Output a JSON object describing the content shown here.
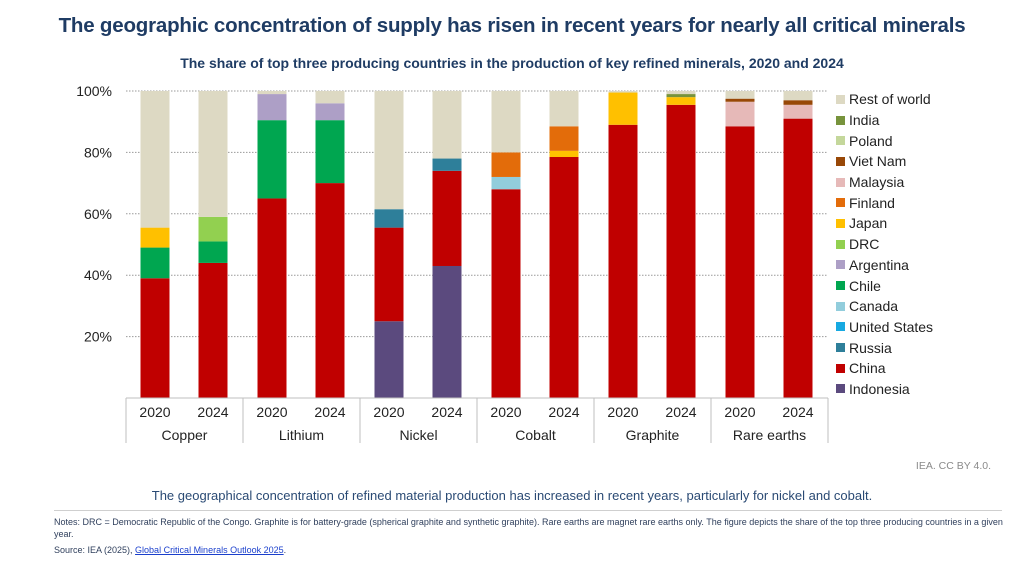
{
  "title": "The geographic concentration of supply has risen in recent years for nearly all critical minerals",
  "subtitle": "The share of top three producing countries in the production of key refined minerals, 2020 and 2024",
  "credit": "IEA. CC BY 4.0.",
  "caption": "The geographical concentration of refined material production has increased in recent years, particularly for nickel and cobalt.",
  "notes": "Notes: DRC = Democratic Republic of the Congo. Graphite is for battery-grade (spherical graphite and synthetic graphite). Rare earths are magnet rare earths only. The figure depicts the share of the top three producing countries in a given year.",
  "source_prefix": "Source: IEA (2025), ",
  "source_link": "Global Critical Minerals Outlook 2025",
  "source_suffix": ".",
  "chart_data": {
    "type": "bar",
    "stacked": true,
    "title": "The share of top three producing countries in the production of key refined minerals, 2020 and 2024",
    "xlabel": "",
    "ylabel": "",
    "ylim": [
      0,
      100
    ],
    "yticks": [
      20,
      40,
      60,
      80,
      100
    ],
    "ytick_labels": [
      "20%",
      "40%",
      "60%",
      "80%",
      "100%"
    ],
    "grid": true,
    "legend_position": "right",
    "groups": [
      "Copper",
      "Lithium",
      "Nickel",
      "Cobalt",
      "Graphite",
      "Rare earths"
    ],
    "categories": [
      "2020",
      "2024",
      "2020",
      "2024",
      "2020",
      "2024",
      "2020",
      "2024",
      "2020",
      "2024",
      "2020",
      "2024"
    ],
    "series": [
      {
        "name": "Indonesia",
        "color": "#5b4a7e",
        "values": [
          0,
          0,
          0,
          0,
          25,
          43,
          0,
          0,
          0,
          0,
          0,
          0
        ]
      },
      {
        "name": "China",
        "color": "#c00000",
        "values": [
          39,
          44,
          65,
          70,
          30.5,
          31,
          68,
          78.5,
          89,
          95.5,
          88.5,
          91
        ]
      },
      {
        "name": "Russia",
        "color": "#2e7f9a",
        "values": [
          0,
          0,
          0,
          0,
          6,
          4,
          0,
          0,
          0,
          0,
          0,
          0
        ]
      },
      {
        "name": "United States",
        "color": "#17a9e1",
        "values": [
          0,
          0,
          0,
          0,
          0,
          0,
          0,
          0,
          0,
          0,
          0,
          0
        ]
      },
      {
        "name": "Canada",
        "color": "#92cddc",
        "values": [
          0,
          0,
          0,
          0,
          0,
          0,
          4,
          0,
          0,
          0,
          0,
          0
        ]
      },
      {
        "name": "Chile",
        "color": "#00a650",
        "values": [
          10,
          7,
          25.5,
          20.5,
          0,
          0,
          0,
          0,
          0,
          0,
          0,
          0
        ]
      },
      {
        "name": "Argentina",
        "color": "#ad9fc6",
        "values": [
          0,
          0,
          8.5,
          5.5,
          0,
          0,
          0,
          0,
          0,
          0,
          0,
          0
        ]
      },
      {
        "name": "DRC",
        "color": "#92d050",
        "values": [
          0,
          8,
          0,
          0,
          0,
          0,
          0,
          0,
          0,
          0,
          0,
          0
        ]
      },
      {
        "name": "Japan",
        "color": "#ffc000",
        "values": [
          6.5,
          0,
          0,
          0,
          0,
          0,
          0,
          2,
          10.5,
          2.5,
          0,
          0
        ]
      },
      {
        "name": "Finland",
        "color": "#e36c0a",
        "values": [
          0,
          0,
          0,
          0,
          0,
          0,
          8,
          8,
          0,
          0,
          0,
          0
        ]
      },
      {
        "name": "Malaysia",
        "color": "#e6b9b8",
        "values": [
          0,
          0,
          0,
          0,
          0,
          0,
          0,
          0,
          0,
          0,
          8,
          4.5
        ]
      },
      {
        "name": "Viet Nam",
        "color": "#984807",
        "values": [
          0,
          0,
          0,
          0,
          0,
          0,
          0,
          0,
          0,
          0,
          1,
          1.5
        ]
      },
      {
        "name": "Poland",
        "color": "#c4d79b",
        "values": [
          0,
          0,
          0,
          0,
          0,
          0,
          0,
          0,
          0,
          0,
          0,
          0
        ]
      },
      {
        "name": "India",
        "color": "#77933c",
        "values": [
          0,
          0,
          0,
          0,
          0,
          0,
          0,
          0,
          0,
          1,
          0,
          0
        ]
      },
      {
        "name": "Rest of world",
        "color": "#ddd9c3",
        "values": [
          44.5,
          41,
          1,
          4,
          38.5,
          22,
          20,
          11.5,
          0.5,
          1,
          2.5,
          3
        ]
      }
    ],
    "legend_order": [
      "Rest of world",
      "India",
      "Poland",
      "Viet Nam",
      "Malaysia",
      "Finland",
      "Japan",
      "DRC",
      "Argentina",
      "Chile",
      "Canada",
      "United States",
      "Russia",
      "China",
      "Indonesia"
    ]
  }
}
